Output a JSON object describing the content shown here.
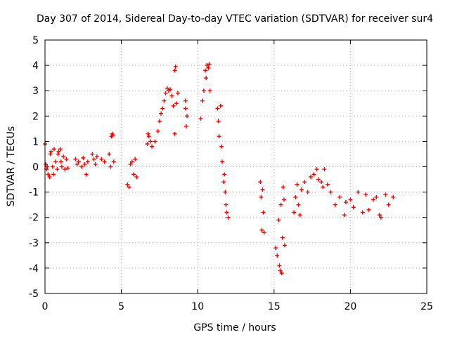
{
  "chart_data": {
    "type": "scatter",
    "title": "Day 307 of 2014, Sidereal Day-to-day VTEC variation (SDTVAR) for receiver sur4",
    "xlabel": "GPS time / hours",
    "ylabel": "SDTVAR / TECUs",
    "xlim": [
      0,
      25
    ],
    "ylim": [
      -5,
      5
    ],
    "xticks": [
      0,
      5,
      10,
      15,
      20,
      25
    ],
    "yticks": [
      -5,
      -4,
      -3,
      -2,
      -1,
      0,
      1,
      2,
      3,
      4,
      5
    ],
    "xtick_labels": [
      "0",
      "5",
      "10",
      "15",
      "20",
      "25"
    ],
    "ytick_labels": [
      "-5",
      "-4",
      "-3",
      "-2",
      "-1",
      "0",
      "1",
      "2",
      "3",
      "4",
      "5"
    ],
    "grid": true,
    "marker": "+",
    "marker_color": "#ff0000",
    "series": [
      {
        "name": "SDTVAR",
        "points": [
          [
            0.0,
            0.9
          ],
          [
            0.05,
            0.1
          ],
          [
            0.1,
            -0.1
          ],
          [
            0.15,
            0.0
          ],
          [
            0.2,
            -0.3
          ],
          [
            0.3,
            -0.4
          ],
          [
            0.35,
            0.5
          ],
          [
            0.4,
            0.6
          ],
          [
            0.5,
            0.0
          ],
          [
            0.55,
            -0.3
          ],
          [
            0.6,
            0.7
          ],
          [
            0.7,
            0.2
          ],
          [
            0.8,
            -0.1
          ],
          [
            0.85,
            0.5
          ],
          [
            0.9,
            0.6
          ],
          [
            1.0,
            0.7
          ],
          [
            1.05,
            0.2
          ],
          [
            1.1,
            0.0
          ],
          [
            1.2,
            0.4
          ],
          [
            1.3,
            -0.1
          ],
          [
            1.4,
            0.3
          ],
          [
            1.5,
            -0.05
          ],
          [
            2.0,
            0.3
          ],
          [
            2.1,
            0.1
          ],
          [
            2.2,
            0.2
          ],
          [
            2.4,
            0.0
          ],
          [
            2.5,
            0.35
          ],
          [
            2.6,
            0.1
          ],
          [
            2.7,
            -0.3
          ],
          [
            2.8,
            0.2
          ],
          [
            3.1,
            0.5
          ],
          [
            3.2,
            0.3
          ],
          [
            3.3,
            0.1
          ],
          [
            3.4,
            0.4
          ],
          [
            3.7,
            0.3
          ],
          [
            3.9,
            0.2
          ],
          [
            4.2,
            0.5
          ],
          [
            4.3,
            0.0
          ],
          [
            4.35,
            1.2
          ],
          [
            4.4,
            1.3
          ],
          [
            4.45,
            1.25
          ],
          [
            4.5,
            0.2
          ],
          [
            5.4,
            -0.7
          ],
          [
            5.5,
            -0.8
          ],
          [
            5.6,
            0.1
          ],
          [
            5.7,
            0.2
          ],
          [
            5.8,
            -0.3
          ],
          [
            5.9,
            0.3
          ],
          [
            6.0,
            -0.4
          ],
          [
            6.7,
            0.9
          ],
          [
            6.75,
            1.3
          ],
          [
            6.8,
            1.2
          ],
          [
            6.9,
            1.0
          ],
          [
            7.0,
            0.8
          ],
          [
            7.2,
            1.0
          ],
          [
            7.4,
            1.4
          ],
          [
            7.5,
            1.8
          ],
          [
            7.6,
            2.1
          ],
          [
            7.7,
            2.3
          ],
          [
            7.8,
            2.6
          ],
          [
            7.9,
            2.9
          ],
          [
            8.0,
            3.1
          ],
          [
            8.1,
            3.0
          ],
          [
            8.2,
            3.05
          ],
          [
            8.3,
            2.8
          ],
          [
            8.4,
            2.4
          ],
          [
            8.5,
            1.3
          ],
          [
            8.5,
            3.8
          ],
          [
            8.55,
            3.95
          ],
          [
            8.6,
            2.5
          ],
          [
            8.7,
            2.9
          ],
          [
            9.2,
            2.6
          ],
          [
            9.2,
            2.3
          ],
          [
            9.25,
            1.6
          ],
          [
            9.3,
            2.0
          ],
          [
            10.2,
            1.9
          ],
          [
            10.3,
            2.6
          ],
          [
            10.4,
            3.0
          ],
          [
            10.5,
            3.8
          ],
          [
            10.55,
            3.5
          ],
          [
            10.6,
            4.0
          ],
          [
            10.7,
            3.9
          ],
          [
            10.75,
            4.05
          ],
          [
            10.8,
            3.0
          ],
          [
            11.3,
            2.3
          ],
          [
            11.35,
            1.8
          ],
          [
            11.4,
            1.2
          ],
          [
            11.5,
            2.4
          ],
          [
            11.55,
            0.8
          ],
          [
            11.6,
            0.2
          ],
          [
            11.7,
            -0.6
          ],
          [
            11.75,
            -0.3
          ],
          [
            11.8,
            -1.0
          ],
          [
            11.85,
            -1.5
          ],
          [
            11.9,
            -1.8
          ],
          [
            12.0,
            -2.0
          ],
          [
            14.1,
            -0.6
          ],
          [
            14.15,
            -1.2
          ],
          [
            14.2,
            -2.5
          ],
          [
            14.25,
            -0.9
          ],
          [
            14.3,
            -1.8
          ],
          [
            14.35,
            -2.6
          ],
          [
            15.1,
            -3.2
          ],
          [
            15.2,
            -3.5
          ],
          [
            15.3,
            -2.1
          ],
          [
            15.35,
            -3.9
          ],
          [
            15.4,
            -4.1
          ],
          [
            15.45,
            -1.5
          ],
          [
            15.5,
            -4.2
          ],
          [
            15.55,
            -2.8
          ],
          [
            15.6,
            -0.8
          ],
          [
            15.65,
            -1.3
          ],
          [
            15.7,
            -3.1
          ],
          [
            16.3,
            -1.8
          ],
          [
            16.4,
            -1.2
          ],
          [
            16.5,
            -0.7
          ],
          [
            16.6,
            -1.5
          ],
          [
            16.7,
            -1.9
          ],
          [
            16.8,
            -0.9
          ],
          [
            17.0,
            -0.6
          ],
          [
            17.2,
            -1.0
          ],
          [
            17.4,
            -0.4
          ],
          [
            17.6,
            -0.3
          ],
          [
            17.8,
            -0.1
          ],
          [
            17.9,
            -0.5
          ],
          [
            18.1,
            -0.6
          ],
          [
            18.2,
            -0.8
          ],
          [
            18.3,
            -0.1
          ],
          [
            18.5,
            -0.7
          ],
          [
            18.7,
            -1.0
          ],
          [
            19.0,
            -1.5
          ],
          [
            19.3,
            -1.2
          ],
          [
            19.6,
            -1.9
          ],
          [
            19.7,
            -1.4
          ],
          [
            20.0,
            -1.3
          ],
          [
            20.2,
            -1.6
          ],
          [
            20.5,
            -1.0
          ],
          [
            20.8,
            -1.8
          ],
          [
            21.0,
            -1.1
          ],
          [
            21.2,
            -1.7
          ],
          [
            21.5,
            -1.3
          ],
          [
            21.7,
            -1.2
          ],
          [
            21.9,
            -1.9
          ],
          [
            22.0,
            -2.0
          ],
          [
            22.3,
            -1.1
          ],
          [
            22.5,
            -1.5
          ],
          [
            22.8,
            -1.2
          ]
        ]
      }
    ]
  }
}
